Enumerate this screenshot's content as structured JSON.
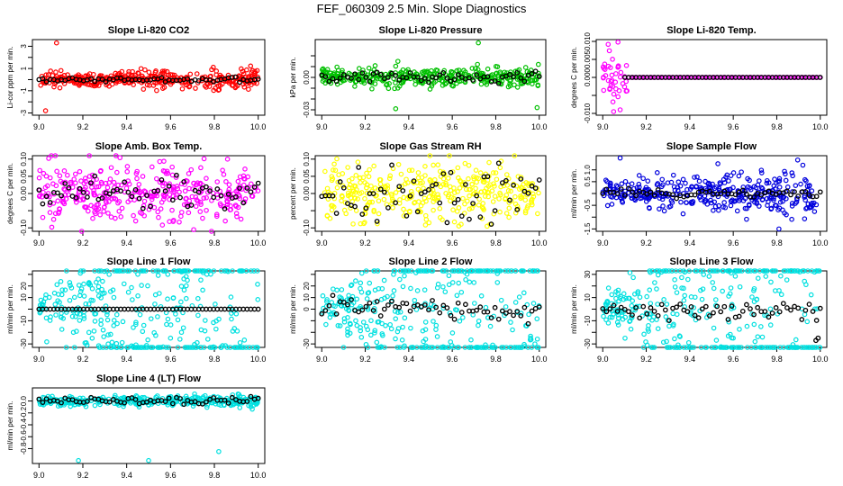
{
  "figure_title": "FEF_060309  2.5 Min. Slope Diagnostics",
  "chart_data": [
    {
      "type": "scatter",
      "id": "co2",
      "title": "Slope Li-820 CO2",
      "ylabel": "Li-cor ppm per min.",
      "xlim": [
        8.97,
        10.03
      ],
      "ylim": [
        -3.2,
        3.6
      ],
      "xticks": [
        9.0,
        9.2,
        9.4,
        9.6,
        9.8,
        10.0
      ],
      "yticks": [
        -3,
        -2,
        -1,
        0,
        1,
        2,
        3
      ],
      "ytick_labels": [
        "-3",
        "",
        "-1",
        "",
        "1",
        "",
        "3"
      ],
      "colored_color": "#ff0000",
      "black_color": "#000000",
      "colored": {
        "sd": 0.28,
        "spread": 0.22,
        "outliers": [
          [
            9.08,
            3.3
          ],
          [
            9.03,
            -2.8
          ]
        ]
      },
      "black": {
        "sd": 0.1
      }
    },
    {
      "type": "scatter",
      "id": "pressure",
      "title": "Slope Li-820 Pressure",
      "ylabel": "kPa per min.",
      "xlim": [
        8.97,
        10.03
      ],
      "ylim": [
        -0.035,
        0.035
      ],
      "xticks": [
        9.0,
        9.2,
        9.4,
        9.6,
        9.8,
        10.0
      ],
      "yticks": [
        -0.03,
        -0.02,
        -0.01,
        0.0,
        0.01,
        0.02
      ],
      "ytick_labels": [
        "-0.03",
        "",
        "",
        "0.00",
        "",
        ""
      ],
      "colored_color": "#00c000",
      "black_color": "#000000",
      "colored": {
        "sd": 0.004,
        "spread": 0.008,
        "outliers": [
          [
            9.72,
            0.032
          ],
          [
            9.99,
            -0.028
          ],
          [
            9.34,
            -0.029
          ]
        ]
      },
      "black": {
        "sd": 0.0025
      }
    },
    {
      "type": "scatter",
      "id": "temp",
      "title": "Slope Li-820 Temp.",
      "ylabel": "degrees C per min.",
      "xlim": [
        8.97,
        10.03
      ],
      "ylim": [
        -0.0105,
        0.0105
      ],
      "xticks": [
        9.0,
        9.2,
        9.4,
        9.6,
        9.8,
        10.0
      ],
      "yticks": [
        -0.01,
        -0.005,
        0.0,
        0.005,
        0.01
      ],
      "ytick_labels": [
        "-0.010",
        "",
        "0.000",
        "0.005",
        "0.010"
      ],
      "colored_color": "#ff00ff",
      "black_color": "#000000",
      "colored": {
        "sd": 0.003,
        "spread": 0.0,
        "active_until": 9.12,
        "outliers": [
          [
            9.07,
            0.0098
          ],
          [
            9.05,
            -0.0095
          ],
          [
            9.08,
            -0.009
          ]
        ]
      },
      "black": {
        "sd": 0.0,
        "active_from": 9.1
      }
    },
    {
      "type": "scatter",
      "id": "boxtemp",
      "title": "Slope Amb. Box Temp.",
      "ylabel": "degrees C per min.",
      "xlim": [
        8.97,
        10.03
      ],
      "ylim": [
        -0.11,
        0.11
      ],
      "xticks": [
        9.0,
        9.2,
        9.4,
        9.6,
        9.8,
        10.0
      ],
      "yticks": [
        -0.1,
        -0.05,
        0.0,
        0.05,
        0.1
      ],
      "ytick_labels": [
        "-0.10",
        "",
        "0.00",
        "0.05",
        "0.10"
      ],
      "colored_color": "#ff00ff",
      "black_color": "#000000",
      "colored": {
        "sd": 0.045,
        "spread": 0.0,
        "outliers": [
          [
            9.86,
            0.1
          ]
        ]
      },
      "black": {
        "sd": 0.025
      }
    },
    {
      "type": "scatter",
      "id": "rh",
      "title": "Slope Gas Stream RH",
      "ylabel": "percent per min.",
      "xlim": [
        8.97,
        10.03
      ],
      "ylim": [
        -0.11,
        0.11
      ],
      "xticks": [
        9.0,
        9.2,
        9.4,
        9.6,
        9.8,
        10.0
      ],
      "yticks": [
        -0.1,
        -0.05,
        0.0,
        0.05,
        0.1
      ],
      "ytick_labels": [
        "-0.10",
        "",
        "0.00",
        "0.05",
        "0.10"
      ],
      "colored_color": "#ffff00",
      "black_color": "#000000",
      "colored": {
        "sd": 0.04,
        "spread": 0.0,
        "outliers": []
      },
      "black": {
        "sd": 0.04
      }
    },
    {
      "type": "scatter",
      "id": "sampleflow",
      "title": "Slope Sample Flow",
      "ylabel": "ml/min per min.",
      "xlim": [
        8.97,
        10.03
      ],
      "ylim": [
        -1.6,
        1.6
      ],
      "xticks": [
        9.0,
        9.2,
        9.4,
        9.6,
        9.8,
        10.0
      ],
      "yticks": [
        -1.5,
        -1.0,
        -0.5,
        0.0,
        0.5,
        1.0
      ],
      "ytick_labels": [
        "-1.5",
        "",
        "-0.5",
        "",
        "0.5",
        "1.0"
      ],
      "colored_color": "#0000dd",
      "black_color": "#000000",
      "colored": {
        "sd": 0.25,
        "spread": 0.35,
        "outliers": [
          [
            9.08,
            1.5
          ],
          [
            9.81,
            -1.5
          ],
          [
            9.92,
            1.2
          ]
        ]
      },
      "black": {
        "sd": 0.08
      }
    },
    {
      "type": "scatter",
      "id": "line1",
      "title": "Slope Line 1 Flow",
      "ylabel": "ml/min per min.",
      "xlim": [
        8.97,
        10.03
      ],
      "ylim": [
        -33,
        33
      ],
      "xticks": [
        9.0,
        9.2,
        9.4,
        9.6,
        9.8,
        10.0
      ],
      "yticks": [
        -30,
        -20,
        -10,
        0,
        10,
        20,
        30
      ],
      "ytick_labels": [
        "-30",
        "",
        "-10",
        "",
        "10",
        "20",
        ""
      ],
      "colored_color": "#00e0e0",
      "black_color": "#000000",
      "colored": {
        "sd": 5,
        "spread": 6,
        "outliers": [
          [
            9.32,
            30
          ],
          [
            9.6,
            -25
          ],
          [
            9.65,
            -20
          ]
        ]
      },
      "black": {
        "sd": 0.0
      }
    },
    {
      "type": "scatter",
      "id": "line2",
      "title": "Slope Line 2 Flow",
      "ylabel": "ml/min per min.",
      "xlim": [
        8.97,
        10.03
      ],
      "ylim": [
        -33,
        33
      ],
      "xticks": [
        9.0,
        9.2,
        9.4,
        9.6,
        9.8,
        10.0
      ],
      "yticks": [
        -30,
        -20,
        -10,
        0,
        10,
        20,
        30
      ],
      "ytick_labels": [
        "-30",
        "",
        "",
        "0",
        "10",
        "20",
        ""
      ],
      "colored_color": "#00e0e0",
      "black_color": "#000000",
      "colored": {
        "sd": 4,
        "spread": 7,
        "outliers": [
          [
            9.33,
            30
          ],
          [
            9.98,
            -30
          ],
          [
            9.96,
            -25
          ]
        ]
      },
      "black": {
        "sd": 4
      }
    },
    {
      "type": "scatter",
      "id": "line3",
      "title": "Slope Line 3 Flow",
      "ylabel": "ml/min per min.",
      "xlim": [
        8.97,
        10.03
      ],
      "ylim": [
        -33,
        33
      ],
      "xticks": [
        9.0,
        9.2,
        9.4,
        9.6,
        9.8,
        10.0
      ],
      "yticks": [
        -30,
        -20,
        -10,
        0,
        10,
        20,
        30
      ],
      "ytick_labels": [
        "-30",
        "",
        "-10",
        "",
        "10",
        "",
        "30"
      ],
      "colored_color": "#00e0e0",
      "black_color": "#000000",
      "colored": {
        "sd": 4,
        "spread": 8,
        "outliers": [
          [
            9.27,
            32
          ],
          [
            9.7,
            -28
          ],
          [
            9.6,
            -25
          ]
        ]
      },
      "black": {
        "sd": 4,
        "outliers": [
          [
            9.98,
            -27
          ],
          [
            9.99,
            -25
          ]
        ]
      }
    },
    {
      "type": "scatter",
      "id": "line4",
      "title": "Slope Line 4 (LT) Flow",
      "ylabel": "ml/min per min.",
      "xlim": [
        8.97,
        10.03
      ],
      "ylim": [
        -1.05,
        0.22
      ],
      "xticks": [
        9.0,
        9.2,
        9.4,
        9.6,
        9.8,
        10.0
      ],
      "yticks": [
        -0.8,
        -0.6,
        -0.4,
        -0.2,
        0.0
      ],
      "ytick_labels": [
        "-0.8",
        "-0.6",
        "-0.4",
        "-0.2",
        "0.0"
      ],
      "colored_color": "#00e0e0",
      "black_color": "#000000",
      "colored": {
        "sd": 0.04,
        "spread": 0.05,
        "outliers": [
          [
            9.18,
            -1.0
          ],
          [
            9.5,
            -1.0
          ],
          [
            9.82,
            -0.85
          ]
        ]
      },
      "black": {
        "sd": 0.03
      }
    }
  ]
}
